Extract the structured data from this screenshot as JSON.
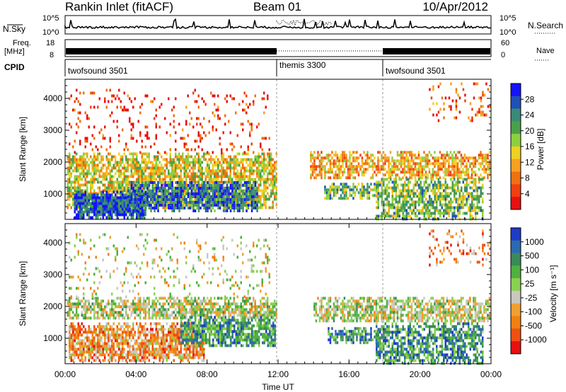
{
  "header": {
    "station": "Rankin Inlet (fitACF)",
    "beam": "Beam 01",
    "date": "10/Apr/2012"
  },
  "nsky_panel": {
    "left_label": "N.Sky",
    "right_label": "N.Search",
    "right_label_style": "dotted",
    "ticks_left": [
      "10^5",
      "10^0"
    ],
    "ticks_right": [
      "10^5",
      "10^0"
    ]
  },
  "freq_panel": {
    "left_label_top": "Freq.",
    "left_label_bottom": "[MHz]",
    "right_label": "Nave",
    "right_label_style": "dotted",
    "ticks_left": [
      "18",
      "8"
    ],
    "ticks_right": [
      "60",
      "0"
    ]
  },
  "cpid_panel": {
    "label": "CPID",
    "segments": [
      {
        "name": "twofsound 3501",
        "start_hour": 0,
        "end_hour": 12
      },
      {
        "name": "themis 3300",
        "start_hour": 12,
        "end_hour": 18
      },
      {
        "name": "twofsound 3501",
        "start_hour": 18,
        "end_hour": 24
      }
    ]
  },
  "chart_data": [
    {
      "type": "heatmap",
      "name": "power",
      "ylabel": "Slant Range [km]",
      "yticks": [
        1000,
        2000,
        3000,
        4000
      ],
      "ylim": [
        200,
        4600
      ],
      "xlim": [
        0,
        24
      ],
      "colorbar": {
        "label": "Power [dB]",
        "ticks": [
          "4",
          "8",
          "12",
          "16",
          "20",
          "24",
          "28"
        ],
        "colors": [
          "#1414ff",
          "#2050b8",
          "#3a8a78",
          "#4aa04a",
          "#8cd040",
          "#f0d020",
          "#f8a020",
          "#f07010",
          "#f04010",
          "#e81010"
        ]
      },
      "echo_regions": [
        {
          "x0": 0.1,
          "x1": 11.9,
          "r0": 600,
          "r1": 2300,
          "weight": 0.75,
          "level": 0.45
        },
        {
          "x0": 0.5,
          "x1": 4.5,
          "r0": 250,
          "r1": 1100,
          "weight": 0.95,
          "level": 0.85
        },
        {
          "x0": 3.5,
          "x1": 10.8,
          "r0": 500,
          "r1": 1400,
          "weight": 0.85,
          "level": 0.8
        },
        {
          "x0": 0.2,
          "x1": 11.5,
          "r0": 2300,
          "r1": 4300,
          "weight": 0.12,
          "level": 0.1
        },
        {
          "x0": 13.8,
          "x1": 23.9,
          "r0": 1500,
          "r1": 2350,
          "weight": 0.7,
          "level": 0.35
        },
        {
          "x0": 14.6,
          "x1": 17.6,
          "r0": 850,
          "r1": 1350,
          "weight": 0.75,
          "level": 0.6
        },
        {
          "x0": 17.5,
          "x1": 23.5,
          "r0": 250,
          "r1": 1500,
          "weight": 0.7,
          "level": 0.6
        },
        {
          "x0": 20.5,
          "x1": 23.9,
          "r0": 3300,
          "r1": 4500,
          "weight": 0.15,
          "level": 0.2
        }
      ]
    },
    {
      "type": "heatmap",
      "name": "velocity",
      "ylabel": "Slant Range [km]",
      "yticks": [
        1000,
        2000,
        3000,
        4000
      ],
      "xlabel": "Time UT",
      "xticks": [
        "00:00",
        "04:00",
        "08:00",
        "12:00",
        "16:00",
        "20:00",
        "00:00"
      ],
      "ylim": [
        200,
        4600
      ],
      "xlim": [
        0,
        24
      ],
      "colorbar": {
        "label": "Velocity [m s⁻¹]",
        "ticks": [
          "1000",
          "500",
          "100",
          "25",
          "-25",
          "-100",
          "-500",
          "-1000"
        ],
        "colors": [
          "#1e3cc8",
          "#2a6ab0",
          "#3a8a5a",
          "#50b040",
          "#8ad050",
          "#c8c8c0",
          "#f0a030",
          "#f08010",
          "#f05010",
          "#e81010"
        ]
      },
      "echo_regions": [
        {
          "x0": 0.1,
          "x1": 11.9,
          "r0": 1600,
          "r1": 2300,
          "weight": 0.75,
          "level": 0.5
        },
        {
          "x0": 0.2,
          "x1": 7.8,
          "r0": 300,
          "r1": 1500,
          "weight": 0.8,
          "level": 0.3
        },
        {
          "x0": 6.5,
          "x1": 11.8,
          "r0": 800,
          "r1": 1700,
          "weight": 0.8,
          "level": 0.72
        },
        {
          "x0": 0.2,
          "x1": 11.5,
          "r0": 2300,
          "r1": 4300,
          "weight": 0.12,
          "level": 0.45
        },
        {
          "x0": 14.8,
          "x1": 17.6,
          "r0": 850,
          "r1": 1350,
          "weight": 0.8,
          "level": 0.75
        },
        {
          "x0": 14.0,
          "x1": 23.9,
          "r0": 1500,
          "r1": 2300,
          "weight": 0.72,
          "level": 0.5
        },
        {
          "x0": 17.5,
          "x1": 23.5,
          "r0": 250,
          "r1": 1500,
          "weight": 0.7,
          "level": 0.72
        },
        {
          "x0": 20.5,
          "x1": 23.9,
          "r0": 3300,
          "r1": 4500,
          "weight": 0.15,
          "level": 0.25
        }
      ]
    }
  ]
}
